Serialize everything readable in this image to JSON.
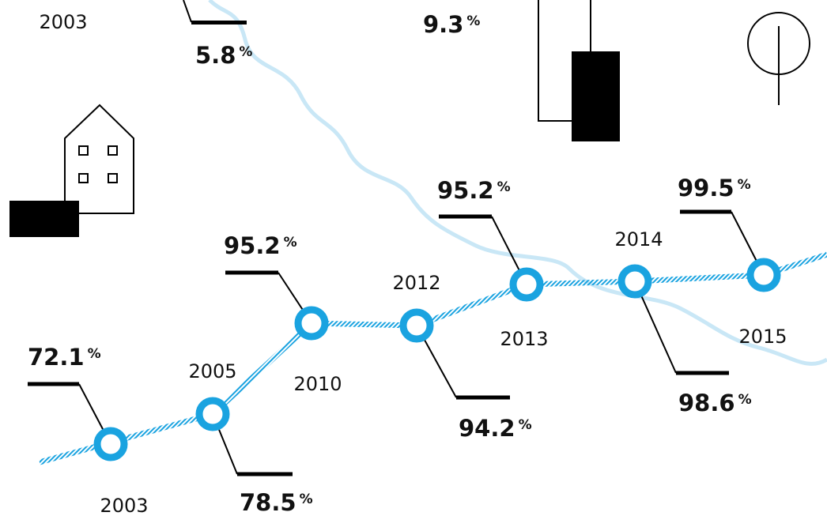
{
  "top": {
    "year": "2003",
    "values": [
      {
        "value": "5.8",
        "unit": "%"
      },
      {
        "value": "9.3",
        "unit": "%"
      }
    ]
  },
  "milestones": [
    {
      "year": "2003",
      "value": "72.1",
      "unit": "%"
    },
    {
      "year": "2005",
      "value": "78.5",
      "unit": "%"
    },
    {
      "year": "2010",
      "value": "95.2",
      "unit": "%"
    },
    {
      "year": "2012",
      "value": "94.2",
      "unit": "%"
    },
    {
      "year": "2013",
      "value": "95.2",
      "unit": "%"
    },
    {
      "year": "2014",
      "value": "98.6",
      "unit": "%"
    },
    {
      "year": "2015",
      "value": "99.5",
      "unit": "%"
    }
  ]
}
